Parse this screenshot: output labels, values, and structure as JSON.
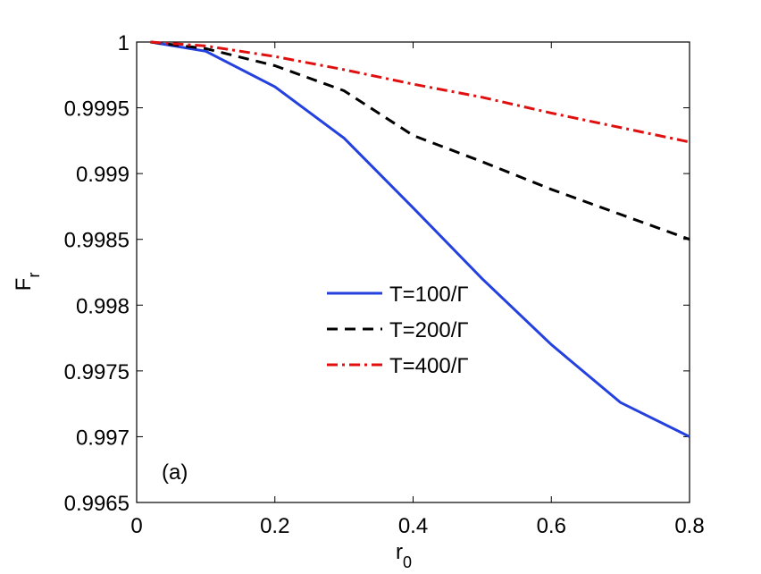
{
  "chart_data": {
    "type": "line",
    "xlabel": {
      "base": "r",
      "sub": "0"
    },
    "ylabel": {
      "base": "F",
      "sub": "r"
    },
    "annotation": "(a)",
    "x": [
      0.02,
      0.1,
      0.2,
      0.3,
      0.4,
      0.5,
      0.6,
      0.7,
      0.8
    ],
    "series": [
      {
        "name": "T=100/Γ",
        "color": "#2441e0",
        "dash": "solid",
        "values": [
          1,
          0.99993,
          0.99966,
          0.99927,
          0.99874,
          0.9982,
          0.9977,
          0.99726,
          0.997
        ]
      },
      {
        "name": "T=200/Γ",
        "color": "#000000",
        "dash": "dashed",
        "values": [
          1,
          0.99995,
          0.99982,
          0.99963,
          0.99929,
          0.99909,
          0.99888,
          0.99869,
          0.9985
        ]
      },
      {
        "name": "T=400/Γ",
        "color": "#e01010",
        "dash": "dashdot",
        "values": [
          1,
          0.99997,
          0.99989,
          0.99979,
          0.99968,
          0.99958,
          0.99946,
          0.99935,
          0.99924
        ]
      }
    ],
    "xlim": [
      0,
      0.8
    ],
    "xticks": [
      0,
      0.2,
      0.4,
      0.6,
      0.8
    ],
    "ylim": [
      0.9965,
      1
    ],
    "yticks": [
      0.9965,
      0.997,
      0.9975,
      0.998,
      0.9985,
      0.999,
      0.9995,
      1
    ],
    "grid": false
  }
}
